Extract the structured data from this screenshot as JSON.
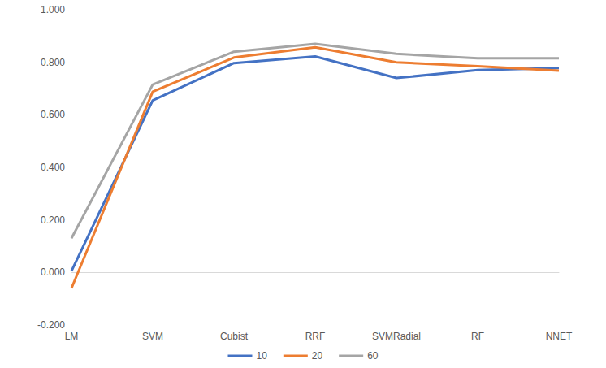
{
  "chart_data": {
    "type": "line",
    "categories": [
      "LM",
      "SVM",
      "Cubist",
      "RRF",
      "SVMRadial",
      "RF",
      "NNET"
    ],
    "series": [
      {
        "name": "10",
        "color": "#4472c4",
        "values": [
          0.005,
          0.655,
          0.797,
          0.822,
          0.74,
          0.77,
          0.778
        ]
      },
      {
        "name": "20",
        "color": "#ed7d31",
        "values": [
          -0.06,
          0.688,
          0.818,
          0.857,
          0.8,
          0.785,
          0.768
        ]
      },
      {
        "name": "60",
        "color": "#a5a5a5",
        "values": [
          0.13,
          0.715,
          0.84,
          0.87,
          0.832,
          0.815,
          0.815
        ]
      }
    ],
    "ylim": [
      -0.2,
      1.0
    ],
    "yticks": [
      {
        "value": -0.2,
        "label": "-0.200"
      },
      {
        "value": 0,
        "label": "0.000"
      },
      {
        "value": 0.2,
        "label": "0.200"
      },
      {
        "value": 0.4,
        "label": "0.400"
      },
      {
        "value": 0.6,
        "label": "0.600"
      },
      {
        "value": 0.8,
        "label": "0.800"
      },
      {
        "value": 1.0,
        "label": "1.000"
      }
    ],
    "grid": false,
    "legend": "bottom"
  }
}
